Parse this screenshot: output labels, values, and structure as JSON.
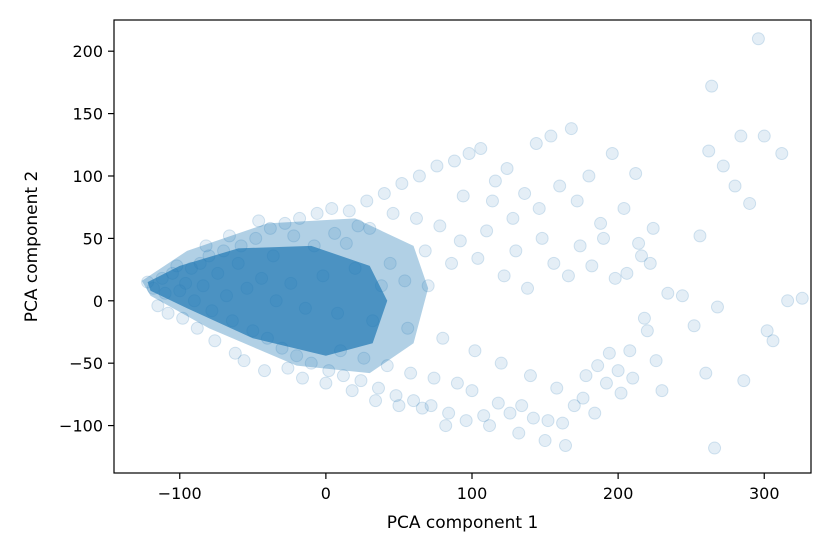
{
  "chart_data": {
    "type": "scatter",
    "title": "",
    "xlabel": "PCA component 1",
    "ylabel": "PCA component 2",
    "xlim": [
      -145,
      332
    ],
    "ylim": [
      -138,
      225
    ],
    "xticks": [
      -100,
      0,
      100,
      200,
      300
    ],
    "yticks": [
      -100,
      -50,
      0,
      50,
      100,
      150,
      200
    ],
    "xtick_labels": [
      "−100",
      "0",
      "100",
      "200",
      "300"
    ],
    "ytick_labels": [
      "−100",
      "−50",
      "0",
      "50",
      "100",
      "150",
      "200"
    ],
    "grid": false,
    "marker_color": "#1f77b4",
    "marker_alpha": 0.12,
    "series": [
      {
        "points": [
          [
            -122,
            15
          ],
          [
            -118,
            10
          ],
          [
            -112,
            18
          ],
          [
            -110,
            6
          ],
          [
            -105,
            22
          ],
          [
            -100,
            8
          ],
          [
            -96,
            14
          ],
          [
            -92,
            26
          ],
          [
            -90,
            0
          ],
          [
            -86,
            30
          ],
          [
            -84,
            12
          ],
          [
            -80,
            36
          ],
          [
            -78,
            -8
          ],
          [
            -74,
            22
          ],
          [
            -70,
            40
          ],
          [
            -68,
            4
          ],
          [
            -64,
            -16
          ],
          [
            -60,
            30
          ],
          [
            -58,
            44
          ],
          [
            -54,
            10
          ],
          [
            -50,
            -24
          ],
          [
            -48,
            50
          ],
          [
            -44,
            18
          ],
          [
            -40,
            -30
          ],
          [
            -38,
            58
          ],
          [
            -34,
            0
          ],
          [
            -30,
            -38
          ],
          [
            -28,
            62
          ],
          [
            -24,
            14
          ],
          [
            -20,
            -44
          ],
          [
            -18,
            66
          ],
          [
            -14,
            -6
          ],
          [
            -10,
            -50
          ],
          [
            -6,
            70
          ],
          [
            -2,
            20
          ],
          [
            2,
            -56
          ],
          [
            4,
            74
          ],
          [
            8,
            -10
          ],
          [
            12,
            -60
          ],
          [
            16,
            72
          ],
          [
            20,
            26
          ],
          [
            24,
            -64
          ],
          [
            28,
            80
          ],
          [
            32,
            -16
          ],
          [
            36,
            -70
          ],
          [
            40,
            86
          ],
          [
            44,
            30
          ],
          [
            48,
            -76
          ],
          [
            52,
            94
          ],
          [
            56,
            -22
          ],
          [
            60,
            -80
          ],
          [
            64,
            100
          ],
          [
            68,
            40
          ],
          [
            72,
            -84
          ],
          [
            76,
            108
          ],
          [
            80,
            -30
          ],
          [
            84,
            -90
          ],
          [
            88,
            112
          ],
          [
            92,
            48
          ],
          [
            96,
            -96
          ],
          [
            98,
            118
          ],
          [
            102,
            -40
          ],
          [
            106,
            122
          ],
          [
            110,
            56
          ],
          [
            112,
            -100
          ],
          [
            116,
            96
          ],
          [
            120,
            -50
          ],
          [
            124,
            106
          ],
          [
            128,
            66
          ],
          [
            132,
            -106
          ],
          [
            136,
            86
          ],
          [
            140,
            -60
          ],
          [
            144,
            126
          ],
          [
            146,
            74
          ],
          [
            150,
            -112
          ],
          [
            154,
            132
          ],
          [
            158,
            -70
          ],
          [
            160,
            92
          ],
          [
            164,
            -116
          ],
          [
            168,
            138
          ],
          [
            172,
            80
          ],
          [
            176,
            -78
          ],
          [
            180,
            100
          ],
          [
            184,
            -90
          ],
          [
            188,
            62
          ],
          [
            192,
            -66
          ],
          [
            196,
            118
          ],
          [
            200,
            -56
          ],
          [
            204,
            74
          ],
          [
            208,
            -40
          ],
          [
            212,
            102
          ],
          [
            216,
            36
          ],
          [
            220,
            -24
          ],
          [
            224,
            58
          ],
          [
            230,
            -72
          ],
          [
            234,
            6
          ],
          [
            244,
            4
          ],
          [
            252,
            -20
          ],
          [
            256,
            52
          ],
          [
            260,
            -58
          ],
          [
            262,
            120
          ],
          [
            264,
            172
          ],
          [
            266,
            -118
          ],
          [
            268,
            -5
          ],
          [
            272,
            108
          ],
          [
            280,
            92
          ],
          [
            284,
            132
          ],
          [
            286,
            -64
          ],
          [
            290,
            78
          ],
          [
            296,
            210
          ],
          [
            300,
            132
          ],
          [
            302,
            -24
          ],
          [
            306,
            -32
          ],
          [
            312,
            118
          ],
          [
            316,
            0
          ],
          [
            326,
            2
          ],
          [
            -115,
            -4
          ],
          [
            -108,
            -10
          ],
          [
            -102,
            28
          ],
          [
            -98,
            -14
          ],
          [
            -88,
            -22
          ],
          [
            -82,
            44
          ],
          [
            -76,
            -32
          ],
          [
            -66,
            52
          ],
          [
            -62,
            -42
          ],
          [
            -56,
            -48
          ],
          [
            -46,
            64
          ],
          [
            -42,
            -56
          ],
          [
            -36,
            36
          ],
          [
            -26,
            -54
          ],
          [
            -22,
            52
          ],
          [
            -16,
            -62
          ],
          [
            -8,
            44
          ],
          [
            0,
            -66
          ],
          [
            6,
            54
          ],
          [
            10,
            -40
          ],
          [
            14,
            46
          ],
          [
            18,
            -72
          ],
          [
            22,
            60
          ],
          [
            26,
            -46
          ],
          [
            30,
            58
          ],
          [
            34,
            -80
          ],
          [
            38,
            12
          ],
          [
            42,
            -52
          ],
          [
            46,
            70
          ],
          [
            50,
            -84
          ],
          [
            54,
            16
          ],
          [
            58,
            -58
          ],
          [
            62,
            66
          ],
          [
            66,
            -86
          ],
          [
            70,
            12
          ],
          [
            74,
            -62
          ],
          [
            78,
            60
          ],
          [
            82,
            -100
          ],
          [
            86,
            30
          ],
          [
            90,
            -66
          ],
          [
            94,
            84
          ],
          [
            100,
            -72
          ],
          [
            104,
            34
          ],
          [
            108,
            -92
          ],
          [
            114,
            80
          ],
          [
            118,
            -82
          ],
          [
            122,
            20
          ],
          [
            126,
            -90
          ],
          [
            130,
            40
          ],
          [
            134,
            -84
          ],
          [
            138,
            10
          ],
          [
            142,
            -94
          ],
          [
            148,
            50
          ],
          [
            152,
            -96
          ],
          [
            156,
            30
          ],
          [
            162,
            -98
          ],
          [
            166,
            20
          ],
          [
            170,
            -84
          ],
          [
            174,
            44
          ],
          [
            178,
            -60
          ],
          [
            182,
            28
          ],
          [
            186,
            -52
          ],
          [
            190,
            50
          ],
          [
            194,
            -42
          ],
          [
            198,
            18
          ],
          [
            202,
            -74
          ],
          [
            206,
            22
          ],
          [
            210,
            -62
          ],
          [
            214,
            46
          ],
          [
            218,
            -14
          ],
          [
            222,
            30
          ],
          [
            226,
            -48
          ]
        ]
      }
    ]
  }
}
